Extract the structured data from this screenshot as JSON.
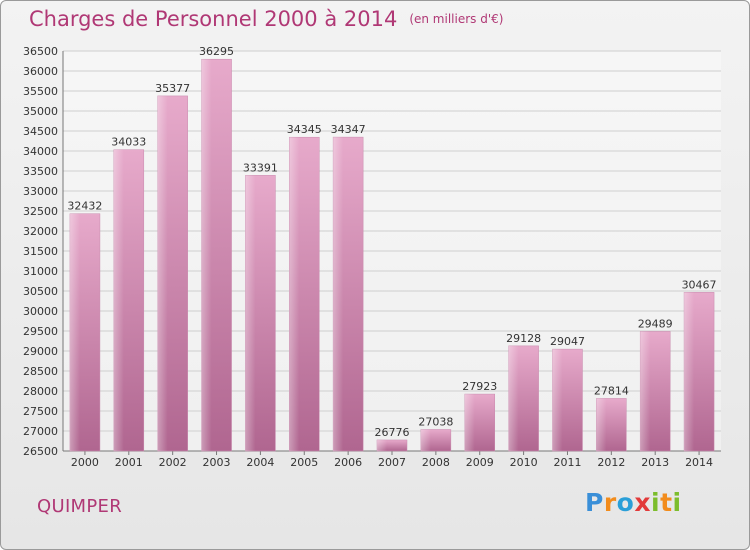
{
  "header": {
    "title": "Charges de Personnel 2000 à 2014",
    "subtitle": "(en milliers d'€)"
  },
  "footer": {
    "commune": "QUIMPER",
    "logo_text": "Proxiti"
  },
  "colors": {
    "title": "#b03875",
    "bar_light": "#e4a6c8",
    "bar_dark": "#b2638f",
    "grid": "#cfcfcf"
  },
  "chart_data": {
    "type": "bar",
    "title": "Charges de Personnel 2000 à 2014",
    "subtitle": "(en milliers d'€)",
    "xlabel": "",
    "ylabel": "",
    "categories": [
      "2000",
      "2001",
      "2002",
      "2003",
      "2004",
      "2005",
      "2006",
      "2007",
      "2008",
      "2009",
      "2010",
      "2011",
      "2012",
      "2013",
      "2014"
    ],
    "values": [
      32432,
      34033,
      35377,
      36295,
      33391,
      34345,
      34347,
      26776,
      27038,
      27923,
      29128,
      29047,
      27814,
      29489,
      30467
    ],
    "ylim": [
      26500,
      36500
    ],
    "ytick_step": 500,
    "grid": true,
    "legend": "none"
  }
}
